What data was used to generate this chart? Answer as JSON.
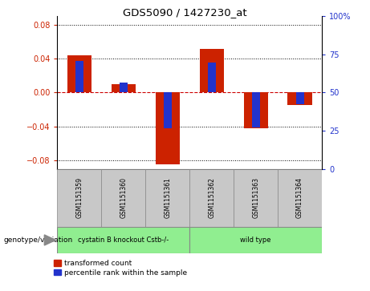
{
  "title": "GDS5090 / 1427230_at",
  "samples": [
    "GSM1151359",
    "GSM1151360",
    "GSM1151361",
    "GSM1151362",
    "GSM1151363",
    "GSM1151364"
  ],
  "red_values": [
    0.044,
    0.01,
    -0.085,
    0.051,
    -0.042,
    -0.015
  ],
  "blue_values": [
    0.037,
    0.012,
    -0.042,
    0.035,
    -0.041,
    -0.014
  ],
  "ylim_left": [
    -0.09,
    0.09
  ],
  "ylim_right": [
    0,
    100
  ],
  "yticks_left": [
    -0.08,
    -0.04,
    0.0,
    0.04,
    0.08
  ],
  "yticks_right": [
    0,
    25,
    50,
    75,
    100
  ],
  "group_labels": [
    "cystatin B knockout Cstb-/-",
    "wild type"
  ],
  "group_ranges": [
    [
      0,
      2
    ],
    [
      3,
      5
    ]
  ],
  "group_colors": [
    "#90EE90",
    "#90EE90"
  ],
  "group_label_text": "genotype/variation",
  "legend_red": "transformed count",
  "legend_blue": "percentile rank within the sample",
  "red_color": "#CC2200",
  "blue_color": "#2233CC",
  "zero_line_color": "#CC0000",
  "tick_color_left": "#CC2200",
  "tick_color_right": "#2233CC",
  "sample_box_color": "#C8C8C8"
}
